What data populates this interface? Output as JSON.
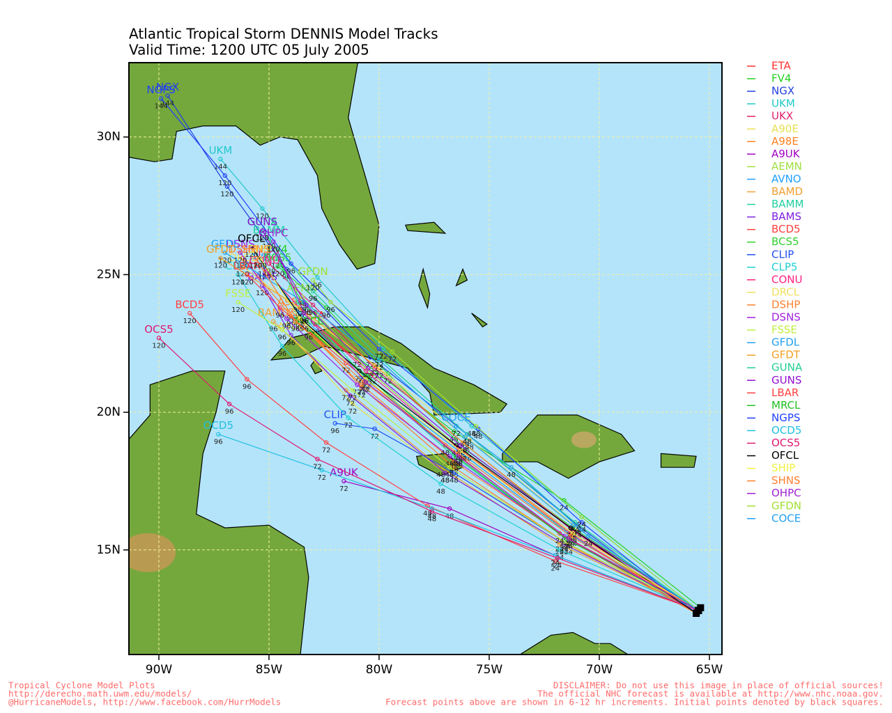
{
  "chart_data": {
    "type": "map",
    "title": "Atlantic Tropical Storm DENNIS Model Tracks",
    "subtitle": "Valid Time: 1200 UTC 05 July 2005",
    "xlim": [
      -91.36,
      -64.43
    ],
    "ylim": [
      11.2,
      32.7
    ],
    "xticks": [
      {
        "value": -90,
        "label": "90W"
      },
      {
        "value": -85,
        "label": "85W"
      },
      {
        "value": -80,
        "label": "80W"
      },
      {
        "value": -75,
        "label": "75W"
      },
      {
        "value": -70,
        "label": "70W"
      },
      {
        "value": -65,
        "label": "65W"
      }
    ],
    "yticks": [
      {
        "value": 15,
        "label": "15N"
      },
      {
        "value": 20,
        "label": "20N"
      },
      {
        "value": 25,
        "label": "25N"
      },
      {
        "value": 30,
        "label": "30N"
      }
    ],
    "grid": true,
    "hours": [
      0,
      24,
      48,
      72,
      96,
      120,
      144
    ],
    "series": [
      {
        "name": "ETA",
        "color": "#ff3030",
        "x": [
          -65.5,
          -71.2,
          -76.2,
          -80.3,
          -82.9
        ],
        "values": [
          12.8,
          15.6,
          18.6,
          21.4,
          23.2
        ]
      },
      {
        "name": "FV4",
        "color": "#20d020",
        "x": [
          -65.4,
          -71.6,
          -76.6,
          -81.0,
          -83.5,
          -84.6
        ],
        "values": [
          12.9,
          16.8,
          19.3,
          22.0,
          24.0,
          25.6
        ]
      },
      {
        "name": "NGX",
        "color": "#2040e0",
        "x": [
          -65.6,
          -71.0,
          -76.0,
          -80.4,
          -84.2,
          -86.9,
          -89.6
        ],
        "values": [
          12.7,
          15.9,
          19.2,
          22.0,
          25.2,
          28.2,
          31.5
        ]
      },
      {
        "name": "UKM",
        "color": "#20c8c8",
        "x": [
          -65.5,
          -70.8,
          -75.8,
          -79.8,
          -82.8,
          -85.3,
          -87.2
        ],
        "values": [
          12.8,
          16.2,
          19.5,
          22.3,
          24.9,
          27.4,
          29.2
        ]
      },
      {
        "name": "UKX",
        "color": "#e0206a",
        "x": [
          -65.6,
          -71.2,
          -76.2,
          -80.2,
          -83.0,
          -85.0
        ],
        "values": [
          12.7,
          15.7,
          18.9,
          21.6,
          23.9,
          25.4
        ]
      },
      {
        "name": "A90E",
        "color": "#e8e050",
        "x": [
          -65.5,
          -71.8,
          -77.0,
          -81.2,
          -84.0
        ],
        "values": [
          12.8,
          15.3,
          17.8,
          20.3,
          22.8
        ]
      },
      {
        "name": "A98E",
        "color": "#ff8020",
        "x": [
          -65.6,
          -71.4,
          -76.6,
          -80.8,
          -84.0
        ],
        "values": [
          12.7,
          15.2,
          18.0,
          20.9,
          23.7
        ]
      },
      {
        "name": "A9UK",
        "color": "#a000c0",
        "x": [
          -65.5,
          -72.0,
          -76.8,
          -81.6
        ],
        "values": [
          12.8,
          14.8,
          16.5,
          17.5
        ]
      },
      {
        "name": "AEMN",
        "color": "#a0e040",
        "x": [
          -65.5,
          -71.2,
          -76.2,
          -80.6,
          -83.5
        ],
        "values": [
          12.8,
          15.5,
          18.6,
          21.6,
          24.2
        ]
      },
      {
        "name": "AVNO",
        "color": "#20a0ff",
        "x": [
          -65.6,
          -71.4,
          -76.4,
          -80.8,
          -83.6,
          -85.2
        ],
        "values": [
          12.7,
          15.6,
          18.6,
          21.3,
          23.6,
          25.3
        ]
      },
      {
        "name": "BAMD",
        "color": "#f0a030",
        "x": [
          -65.5,
          -71.8,
          -77.2,
          -81.5,
          -84.8
        ],
        "values": [
          12.8,
          15.2,
          18.0,
          20.8,
          23.3
        ]
      },
      {
        "name": "BAMM",
        "color": "#20d0a0",
        "x": [
          -65.5,
          -71.5,
          -76.6,
          -80.8,
          -83.7,
          -85.0
        ],
        "values": [
          12.8,
          15.4,
          18.4,
          21.4,
          24.0,
          26.3
        ]
      },
      {
        "name": "BAMS",
        "color": "#8020e0",
        "x": [
          -65.5,
          -71.6,
          -77.0,
          -81.3,
          -84.0,
          -85.3
        ],
        "values": [
          12.8,
          15.2,
          17.8,
          20.6,
          22.8,
          24.6
        ]
      },
      {
        "name": "BCD5",
        "color": "#ff4040",
        "x": [
          -65.5,
          -72.0,
          -77.8,
          -82.4,
          -86.0,
          -88.6
        ],
        "values": [
          12.8,
          14.6,
          16.6,
          18.9,
          21.2,
          23.6
        ]
      },
      {
        "name": "BCS5",
        "color": "#30d030",
        "x": [
          -65.5,
          -71.2,
          -76.0,
          -79.6,
          -82.4,
          -84.6
        ],
        "values": [
          12.8,
          15.8,
          18.6,
          21.4,
          23.8,
          25.3
        ]
      },
      {
        "name": "CLIP",
        "color": "#2050f0",
        "x": [
          -65.5,
          -71.6,
          -76.6,
          -80.2,
          -82.0
        ],
        "values": [
          12.8,
          15.3,
          17.8,
          19.4,
          19.6
        ]
      },
      {
        "name": "CLP5",
        "color": "#20d0d0",
        "x": [
          -65.5,
          -71.8,
          -77.2,
          -81.4,
          -84.4,
          -86.4
        ],
        "values": [
          12.8,
          15.0,
          17.4,
          19.8,
          22.4,
          25.0
        ]
      },
      {
        "name": "CONU",
        "color": "#ff2080",
        "x": [
          -65.6,
          -71.3,
          -76.4,
          -80.6,
          -83.4,
          -85.2
        ],
        "values": [
          12.7,
          15.6,
          18.7,
          21.5,
          23.6,
          25.2
        ]
      },
      {
        "name": "DRCL",
        "color": "#f0e060",
        "x": [
          -65.5,
          -71.0,
          -75.9,
          -80.0,
          -83.4,
          -86.2
        ],
        "values": [
          12.8,
          15.8,
          19.0,
          21.6,
          23.6,
          25.3
        ]
      },
      {
        "name": "DSHP",
        "color": "#ff8030",
        "x": [
          -65.6,
          -71.4,
          -76.6,
          -80.8,
          -84.0,
          -86.2
        ],
        "values": [
          12.7,
          15.4,
          18.2,
          21.0,
          23.5,
          25.6
        ]
      },
      {
        "name": "DSNS",
        "color": "#a020e0",
        "x": [
          -65.5,
          -71.6,
          -76.8,
          -81.0,
          -84.2,
          -86.3
        ],
        "values": [
          12.8,
          15.5,
          18.4,
          21.0,
          23.4,
          25.8
        ]
      },
      {
        "name": "FSSE",
        "color": "#c0f040",
        "x": [
          -65.5,
          -71.6,
          -76.8,
          -81.2,
          -84.4,
          -86.4
        ],
        "values": [
          12.8,
          15.3,
          18.0,
          20.8,
          23.0,
          24.0
        ]
      },
      {
        "name": "GFDL",
        "color": "#20a0f0",
        "x": [
          -65.5,
          -71.2,
          -76.1,
          -80.0,
          -83.4,
          -87.0
        ],
        "values": [
          12.8,
          15.9,
          19.1,
          21.9,
          24.0,
          25.8
        ]
      },
      {
        "name": "GFDT",
        "color": "#f0a020",
        "x": [
          -65.5,
          -71.3,
          -76.2,
          -80.2,
          -83.6,
          -87.2
        ],
        "values": [
          12.8,
          15.8,
          18.9,
          21.7,
          23.8,
          25.6
        ]
      },
      {
        "name": "GUNA",
        "color": "#20d090",
        "x": [
          -65.5,
          -71.1,
          -76.0,
          -80.0,
          -83.0,
          -85.3
        ],
        "values": [
          12.8,
          16.0,
          19.2,
          22.0,
          24.4,
          26.6
        ]
      },
      {
        "name": "GUNS",
        "color": "#9010d0",
        "x": [
          -65.5,
          -71.3,
          -76.3,
          -80.5,
          -83.3,
          -85.3
        ],
        "values": [
          12.8,
          15.8,
          18.8,
          21.6,
          23.9,
          26.6
        ]
      },
      {
        "name": "LBAR",
        "color": "#ff4040",
        "x": [
          -65.5,
          -71.8,
          -77.0,
          -81.5,
          -84.5,
          -86.0
        ],
        "values": [
          12.8,
          15.6,
          18.8,
          21.8,
          23.8,
          25.0
        ]
      },
      {
        "name": "MRCL",
        "color": "#20c020",
        "x": [
          -65.5,
          -71.5,
          -76.5,
          -80.5,
          -83.2
        ],
        "values": [
          12.8,
          15.4,
          18.4,
          21.3,
          23.0
        ]
      },
      {
        "name": "NGPS",
        "color": "#2040ff",
        "x": [
          -65.6,
          -70.8,
          -75.5,
          -80.0,
          -84.0,
          -87.0,
          -89.9
        ],
        "values": [
          12.7,
          16.0,
          19.4,
          22.3,
          25.4,
          28.6,
          31.4
        ]
      },
      {
        "name": "OCD5",
        "color": "#20c0e0",
        "x": [
          -65.5,
          -72.0,
          -77.6,
          -82.6,
          -87.3
        ],
        "values": [
          12.8,
          14.8,
          16.5,
          17.9,
          19.2
        ]
      },
      {
        "name": "OCS5",
        "color": "#e01870",
        "x": [
          -65.5,
          -71.9,
          -77.6,
          -82.8,
          -86.8,
          -90.0
        ],
        "values": [
          12.8,
          14.7,
          16.4,
          18.3,
          20.3,
          22.7
        ]
      },
      {
        "name": "OFCL",
        "color": "#000000",
        "x": [
          -65.6,
          -71.3,
          -76.5,
          -80.9,
          -83.4,
          -85.8
        ],
        "values": [
          12.7,
          15.8,
          18.8,
          21.5,
          23.3,
          26.0
        ]
      },
      {
        "name": "SHIP",
        "color": "#f0f040",
        "x": [
          -65.5,
          -71.2,
          -76.3,
          -80.6,
          -83.6,
          -85.4
        ],
        "values": [
          12.8,
          15.6,
          18.6,
          21.2,
          23.4,
          25.6
        ]
      },
      {
        "name": "SHNS",
        "color": "#ff8030",
        "x": [
          -65.5,
          -71.3,
          -76.4,
          -80.7,
          -83.8,
          -85.6
        ],
        "values": [
          12.8,
          15.5,
          18.5,
          21.1,
          23.3,
          25.6
        ]
      },
      {
        "name": "OHPC",
        "color": "#a020d0",
        "x": [
          -65.5,
          -71.4,
          -76.4,
          -80.6,
          -83.4,
          -84.8
        ],
        "values": [
          12.8,
          15.4,
          18.4,
          21.1,
          23.6,
          26.2
        ]
      },
      {
        "name": "GFDN",
        "color": "#a0e030",
        "x": [
          -65.5,
          -70.8,
          -75.6,
          -79.4,
          -82.2,
          -83.0
        ],
        "values": [
          12.8,
          16.2,
          19.5,
          22.2,
          24.0,
          24.8
        ]
      },
      {
        "name": "COCE",
        "color": "#20a0f0",
        "x": [
          -65.5,
          -70.5,
          -74.0,
          -76.5
        ],
        "values": [
          12.8,
          15.5,
          18.0,
          19.5
        ]
      }
    ]
  },
  "footer": {
    "left": [
      "Tropical Cyclone Model Plots",
      "http://derecho.math.uwm.edu/models/",
      "@HurricaneModels, http://www.facebook.com/HurrModels"
    ],
    "right": [
      "DISCLAIMER: Do not use this image in place of official sources!",
      "The official NHC forecast is available at http://www.nhc.noaa.gov.",
      "Forecast points above are shown in 6-12 hr increments. Initial points denoted by black squares."
    ]
  }
}
